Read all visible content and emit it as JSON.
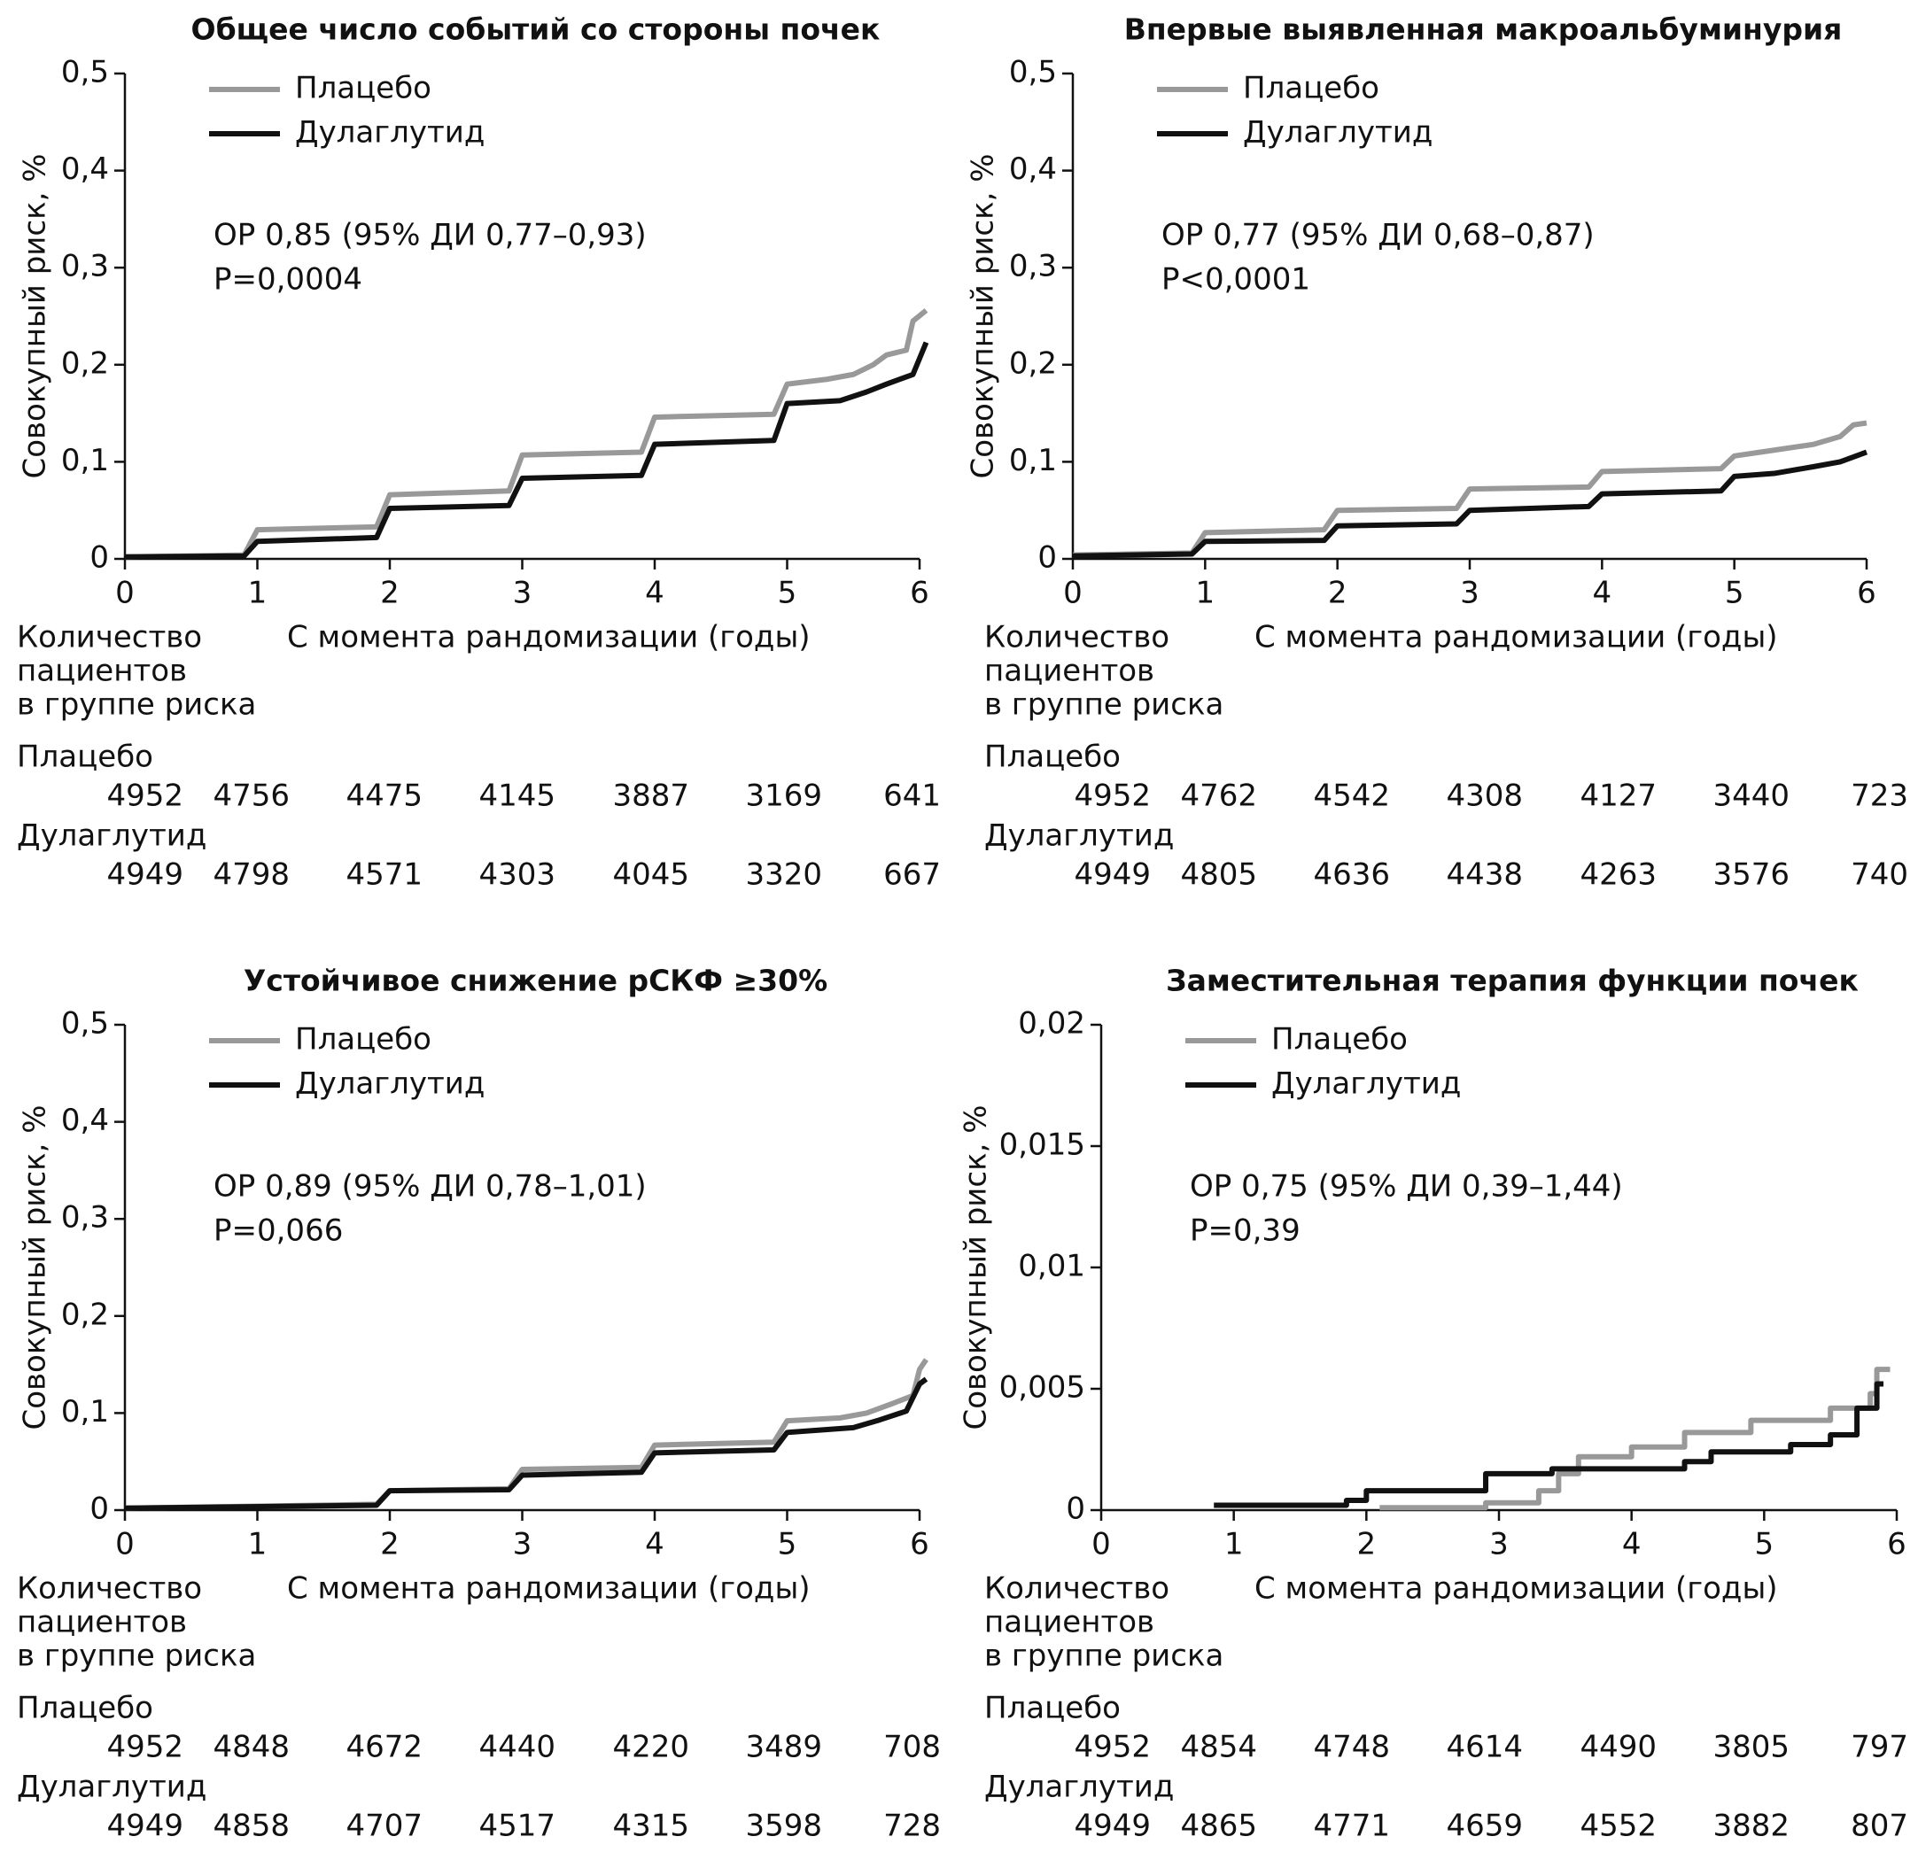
{
  "chart_data": [
    {
      "type": "line",
      "step": false,
      "title": "Общее число событий со стороны почек",
      "y_label": "Совокупный риск, %",
      "x_label": "С момента рандомизации (годы)",
      "annotations": [
        "ОР 0,85 (95% ДИ 0,77–0,93)",
        "P=0,0004"
      ],
      "xlim": [
        0,
        6
      ],
      "xticks": [
        0,
        1,
        2,
        3,
        4,
        5,
        6
      ],
      "ylim": [
        0,
        0.5
      ],
      "yticks": [
        0,
        {
          "value": 0.1,
          "label": "0,1"
        },
        {
          "value": 0.2,
          "label": "0,2"
        },
        {
          "value": 0.3,
          "label": "0,3"
        },
        {
          "value": 0.4,
          "label": "0,4"
        },
        {
          "value": 0.5,
          "label": "0,5"
        }
      ],
      "series": [
        {
          "name": "Плацебо",
          "color": "#999999",
          "x": [
            0,
            0.9,
            1.0,
            1.9,
            2.0,
            2.9,
            3.0,
            3.9,
            4.0,
            4.9,
            5.0,
            5.3,
            5.5,
            5.65,
            5.75,
            5.9,
            5.95,
            6.05
          ],
          "values": [
            0.002,
            0.004,
            0.03,
            0.033,
            0.066,
            0.07,
            0.107,
            0.11,
            0.146,
            0.149,
            0.18,
            0.185,
            0.19,
            0.2,
            0.21,
            0.215,
            0.245,
            0.256
          ]
        },
        {
          "name": "Дулаглутид",
          "color": "#111111",
          "x": [
            0,
            0.9,
            1.0,
            1.9,
            2.0,
            2.9,
            3.0,
            3.9,
            4.0,
            4.9,
            5.0,
            5.4,
            5.6,
            5.75,
            5.95,
            6.05
          ],
          "values": [
            0.002,
            0.003,
            0.018,
            0.022,
            0.052,
            0.055,
            0.083,
            0.086,
            0.118,
            0.122,
            0.16,
            0.163,
            0.172,
            0.18,
            0.19,
            0.223
          ]
        }
      ],
      "risk_table": {
        "header": [
          "Количество",
          "пациентов",
          "в группе риска"
        ],
        "rows": [
          {
            "name": "Плацебо",
            "values": [
              4952,
              4756,
              4475,
              4145,
              3887,
              3169,
              641
            ]
          },
          {
            "name": "Дулаглутид",
            "values": [
              4949,
              4798,
              4571,
              4303,
              4045,
              3320,
              667
            ]
          }
        ]
      }
    },
    {
      "type": "line",
      "step": false,
      "title": "Впервые выявленная макроальбуминурия",
      "y_label": "Совокупный риск, %",
      "x_label": "С момента рандомизации (годы)",
      "annotations": [
        "ОР 0,77 (95% ДИ 0,68–0,87)",
        "P<0,0001"
      ],
      "xlim": [
        0,
        6
      ],
      "xticks": [
        0,
        1,
        2,
        3,
        4,
        5,
        6
      ],
      "ylim": [
        0,
        0.5
      ],
      "yticks": [
        0,
        {
          "value": 0.1,
          "label": "0,1"
        },
        {
          "value": 0.2,
          "label": "0,2"
        },
        {
          "value": 0.3,
          "label": "0,3"
        },
        {
          "value": 0.4,
          "label": "0,4"
        },
        {
          "value": 0.5,
          "label": "0,5"
        }
      ],
      "series": [
        {
          "name": "Плацебо",
          "color": "#999999",
          "x": [
            0,
            0.9,
            1.0,
            1.9,
            2.0,
            2.9,
            3.0,
            3.9,
            4.0,
            4.9,
            5.0,
            5.3,
            5.6,
            5.8,
            5.9,
            6.0
          ],
          "values": [
            0.004,
            0.006,
            0.027,
            0.03,
            0.05,
            0.052,
            0.072,
            0.074,
            0.09,
            0.093,
            0.106,
            0.112,
            0.118,
            0.126,
            0.138,
            0.14
          ]
        },
        {
          "name": "Дулаглутид",
          "color": "#111111",
          "x": [
            0,
            0.9,
            1.0,
            1.9,
            2.0,
            2.9,
            3.0,
            3.9,
            4.0,
            4.9,
            5.0,
            5.3,
            5.6,
            5.8,
            6.0
          ],
          "values": [
            0.003,
            0.005,
            0.018,
            0.019,
            0.034,
            0.036,
            0.05,
            0.054,
            0.067,
            0.07,
            0.085,
            0.088,
            0.095,
            0.1,
            0.11
          ]
        }
      ],
      "risk_table": {
        "header": [
          "Количество",
          "пациентов",
          "в группе риска"
        ],
        "rows": [
          {
            "name": "Плацебо",
            "values": [
              4952,
              4762,
              4542,
              4308,
              4127,
              3440,
              723
            ]
          },
          {
            "name": "Дулаглутид",
            "values": [
              4949,
              4805,
              4636,
              4438,
              4263,
              3576,
              740
            ]
          }
        ]
      }
    },
    {
      "type": "line",
      "step": false,
      "title": "Устойчивое снижение рСКФ ≥30%",
      "y_label": "Совокупный риск, %",
      "x_label": "С момента рандомизации (годы)",
      "annotations": [
        "ОР 0,89 (95% ДИ 0,78–1,01)",
        "P=0,066"
      ],
      "xlim": [
        0,
        6
      ],
      "xticks": [
        0,
        1,
        2,
        3,
        4,
        5,
        6
      ],
      "ylim": [
        0,
        0.5
      ],
      "yticks": [
        0,
        {
          "value": 0.1,
          "label": "0,1"
        },
        {
          "value": 0.2,
          "label": "0,2"
        },
        {
          "value": 0.3,
          "label": "0,3"
        },
        {
          "value": 0.4,
          "label": "0,4"
        },
        {
          "value": 0.5,
          "label": "0,5"
        }
      ],
      "series": [
        {
          "name": "Плацебо",
          "color": "#999999",
          "x": [
            0,
            1.9,
            2.0,
            2.9,
            3.0,
            3.9,
            4.0,
            4.9,
            5.0,
            5.4,
            5.6,
            5.8,
            5.95,
            6.0,
            6.05
          ],
          "values": [
            0.002,
            0.006,
            0.02,
            0.022,
            0.042,
            0.044,
            0.067,
            0.07,
            0.092,
            0.095,
            0.1,
            0.11,
            0.118,
            0.145,
            0.155
          ]
        },
        {
          "name": "Дулаглутид",
          "color": "#111111",
          "x": [
            0,
            1.9,
            2.0,
            2.9,
            3.0,
            3.9,
            4.0,
            4.9,
            5.0,
            5.5,
            5.7,
            5.9,
            6.0,
            6.05
          ],
          "values": [
            0.002,
            0.005,
            0.02,
            0.021,
            0.036,
            0.039,
            0.059,
            0.062,
            0.08,
            0.085,
            0.093,
            0.102,
            0.13,
            0.135
          ]
        }
      ],
      "risk_table": {
        "header": [
          "Количество",
          "пациентов",
          "в группе риска"
        ],
        "rows": [
          {
            "name": "Плацебо",
            "values": [
              4952,
              4848,
              4672,
              4440,
              4220,
              3489,
              708
            ]
          },
          {
            "name": "Дулаглутид",
            "values": [
              4949,
              4858,
              4707,
              4517,
              4315,
              3598,
              728
            ]
          }
        ]
      }
    },
    {
      "type": "line",
      "step": true,
      "title": "Заместительная терапия функции почек",
      "y_label": "Совокупный риск, %",
      "x_label": "С момента рандомизации (годы)",
      "annotations": [
        "ОР 0,75 (95% ДИ 0,39–1,44)",
        "P=0,39"
      ],
      "xlim": [
        0,
        6
      ],
      "xticks": [
        0,
        1,
        2,
        3,
        4,
        5,
        6
      ],
      "ylim": [
        0,
        0.02
      ],
      "yticks": [
        0,
        {
          "value": 0.005,
          "label": "0,005"
        },
        {
          "value": 0.01,
          "label": "0,01"
        },
        {
          "value": 0.015,
          "label": "0,015"
        },
        {
          "value": 0.02,
          "label": "0,02"
        }
      ],
      "series": [
        {
          "name": "Плацебо",
          "color": "#999999",
          "x": [
            2.1,
            2.9,
            3.3,
            3.45,
            3.6,
            4.0,
            4.4,
            4.9,
            5.5,
            5.8,
            5.85,
            5.95
          ],
          "values": [
            0.0001,
            0.0003,
            0.0008,
            0.0015,
            0.0022,
            0.0026,
            0.0032,
            0.0037,
            0.0042,
            0.0048,
            0.0058,
            0.0058
          ]
        },
        {
          "name": "Дулаглутид",
          "color": "#111111",
          "x": [
            0.85,
            1.85,
            2.0,
            2.9,
            3.4,
            4.4,
            4.6,
            5.2,
            5.5,
            5.7,
            5.85,
            5.9
          ],
          "values": [
            0.0002,
            0.0004,
            0.0008,
            0.0015,
            0.0017,
            0.002,
            0.0024,
            0.0027,
            0.0031,
            0.0042,
            0.0052,
            0.0052
          ]
        }
      ],
      "risk_table": {
        "header": [
          "Количество",
          "пациентов",
          "в группе риска"
        ],
        "rows": [
          {
            "name": "Плацебо",
            "values": [
              4952,
              4854,
              4748,
              4614,
              4490,
              3805,
              797
            ]
          },
          {
            "name": "Дулаглутид",
            "values": [
              4949,
              4865,
              4771,
              4659,
              4552,
              3882,
              807
            ]
          }
        ]
      }
    }
  ]
}
